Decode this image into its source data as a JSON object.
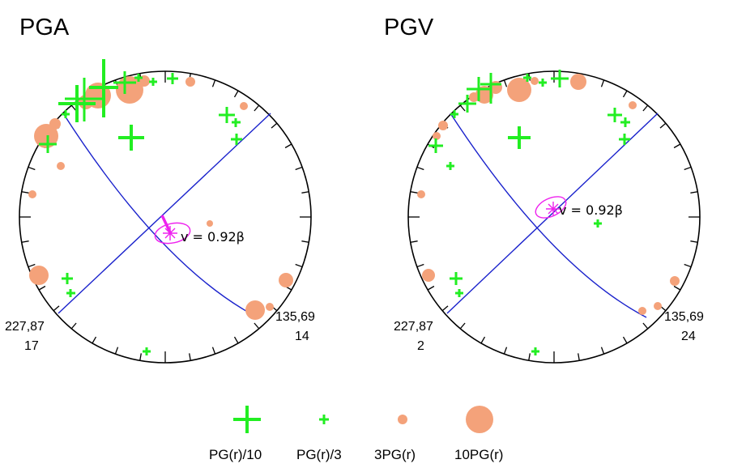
{
  "colors": {
    "cross": "#22ee22",
    "dot": "#f4a27a",
    "plane": "#1a22cc",
    "vector": "#ee22ee",
    "frame": "#000000"
  },
  "panels": [
    {
      "title": "PGA",
      "velocity_label": "v = 0.92β",
      "plane_left_label": "227,87",
      "plane_left_count": "17",
      "plane_right_label": "135,69",
      "plane_right_count": "14"
    },
    {
      "title": "PGV",
      "velocity_label": "v = 0.92β",
      "plane_left_label": "227,87",
      "plane_left_count": "2",
      "plane_right_label": "135,69",
      "plane_right_count": "24"
    }
  ],
  "legend": [
    {
      "symbol": "cross-large",
      "label": "PG(r)/10"
    },
    {
      "symbol": "cross-small",
      "label": "PG(r)/3"
    },
    {
      "symbol": "dot-small",
      "label": "3PG(r)"
    },
    {
      "symbol": "dot-large",
      "label": "10PG(r)"
    }
  ]
}
